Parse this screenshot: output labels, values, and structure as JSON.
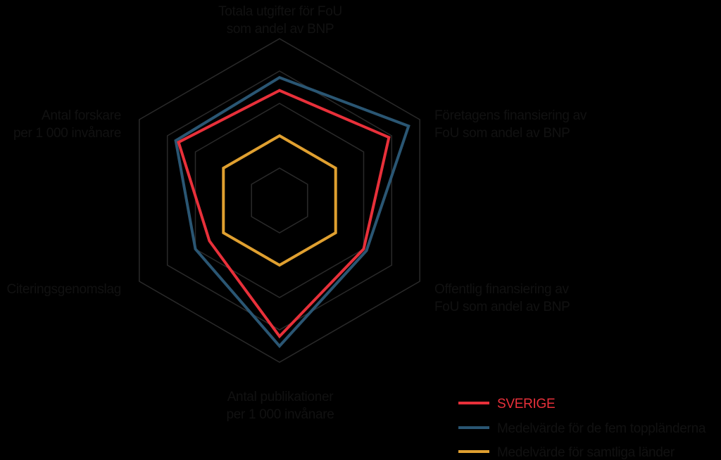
{
  "chart_data": {
    "type": "radar",
    "title": "",
    "axes": [
      [
        "Totala utgifter för FoU",
        "som andel av BNP"
      ],
      [
        "Företagens finansiering av",
        "FoU som andel av BNP"
      ],
      [
        "Offentlig finansiering av",
        "FoU som andel av BNP"
      ],
      [
        "Antal publikationer",
        "per 1 000 invånare"
      ],
      [
        "Citeringsgenomslag"
      ],
      [
        "Antal forskare",
        "per 1 000 invånare"
      ]
    ],
    "grid_levels": [
      1,
      2,
      3,
      4,
      5
    ],
    "rmax": 5,
    "series": [
      {
        "name": "SVERIGE",
        "color": "#e8303a",
        "values": [
          3.4,
          3.9,
          3.0,
          4.2,
          2.5,
          3.6
        ]
      },
      {
        "name": "Medelvärde för de fem toppländerna",
        "color": "#2a5673",
        "values": [
          3.8,
          4.6,
          3.1,
          4.5,
          3.0,
          3.7
        ]
      },
      {
        "name": "Medelvärde för samtliga länder",
        "color": "#e0a030",
        "values": [
          2.0,
          2.0,
          2.0,
          2.0,
          2.0,
          2.0
        ]
      }
    ],
    "legend_position": "bottom-right",
    "background": "#000000",
    "grid_color": "#2a2a2a"
  }
}
